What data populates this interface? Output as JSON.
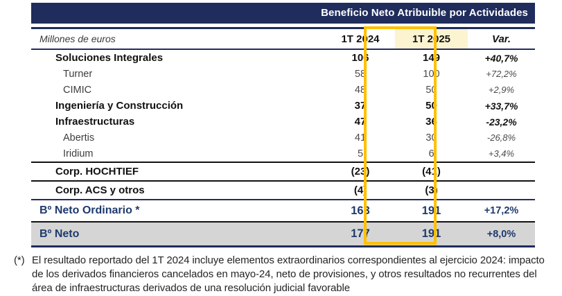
{
  "title_bar": {
    "title": "Beneficio Neto Atribuible por Actividades"
  },
  "table": {
    "unit_label": "Millones de euros",
    "columns": {
      "c2024": "1T 2024",
      "c2025": "1T 2025",
      "cvar": "Var."
    },
    "rows": [
      {
        "label": "Soluciones Integrales",
        "v2024": "106",
        "v2025": "149",
        "var": "+40,7%",
        "style": "group"
      },
      {
        "label": "Turner",
        "v2024": "58",
        "v2025": "100",
        "var": "+72,2%",
        "style": "sub"
      },
      {
        "label": "CIMIC",
        "v2024": "48",
        "v2025": "50",
        "var": "+2,9%",
        "style": "sub"
      },
      {
        "label": "Ingeniería y Construcción",
        "v2024": "37",
        "v2025": "50",
        "var": "+33,7%",
        "style": "group"
      },
      {
        "label": "Infraestructuras",
        "v2024": "47",
        "v2025": "36",
        "var": "-23,2%",
        "style": "group"
      },
      {
        "label": "Abertis",
        "v2024": "41",
        "v2025": "30",
        "var": "-26,8%",
        "style": "sub"
      },
      {
        "label": "Iridium",
        "v2024": "5",
        "v2025": "6",
        "var": "+3,4%",
        "style": "sub"
      },
      {
        "label": "Corp. HOCHTIEF",
        "v2024": "(23)",
        "v2025": "(41)",
        "var": "",
        "style": "corp"
      },
      {
        "label": "Corp. ACS y otros",
        "v2024": "(4)",
        "v2025": "(3)",
        "var": "",
        "style": "corp"
      },
      {
        "label": "Bº Neto Ordinario *",
        "v2024": "163",
        "v2025": "191",
        "var": "+17,2%",
        "style": "total"
      },
      {
        "label": "Bº Neto",
        "v2024": "177",
        "v2025": "191",
        "var": "+8,0%",
        "style": "total-gray"
      }
    ]
  },
  "footnote": {
    "marker": "(*)",
    "text": "El resultado reportado del 1T 2024 incluye elementos extraordinarios correspondientes al ejercicio 2024: impacto de los derivados financieros cancelados en mayo-24, neto de provisiones, y otros resultados no recurrentes del área de infraestructuras derivados de una resolución judicial favorable"
  },
  "colors": {
    "navy_bar": "#1F2C5C",
    "accent_blue_text": "#1E3A6D",
    "highlight_border": "#FFC000",
    "highlight_header_bg": "#FCF3D1",
    "gray_row_bg": "#D5D5D5"
  }
}
